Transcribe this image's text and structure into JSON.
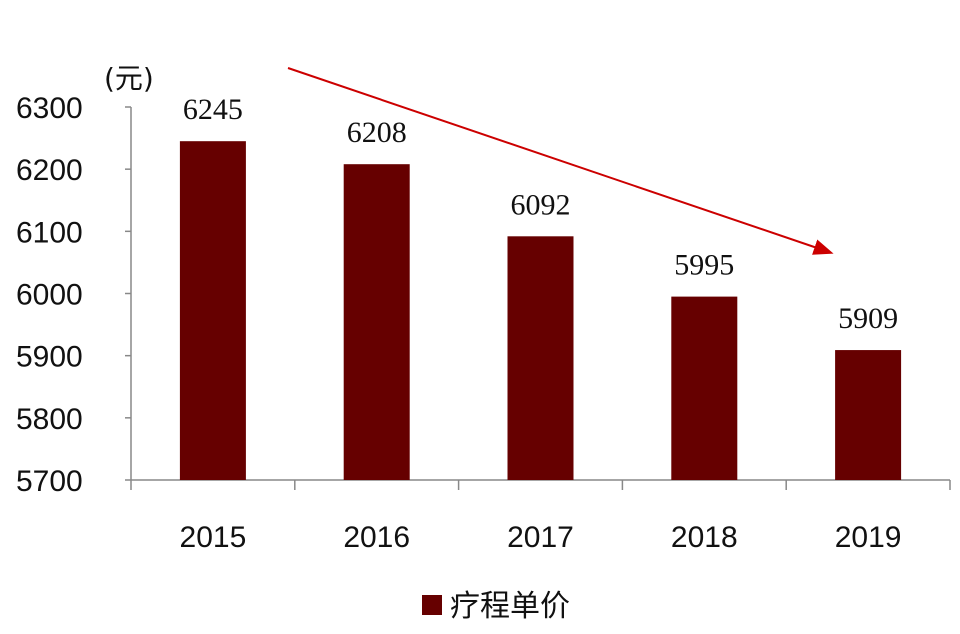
{
  "chart_data": {
    "type": "bar",
    "categories": [
      "2015",
      "2016",
      "2017",
      "2018",
      "2019"
    ],
    "series": [
      {
        "name": "疗程单价",
        "values": [
          6245,
          6208,
          6092,
          5995,
          5909
        ],
        "color": "#660000"
      }
    ],
    "data_labels": [
      "6245",
      "6208",
      "6092",
      "5995",
      "5909"
    ],
    "yticks": [
      "5700",
      "5800",
      "5900",
      "6000",
      "6100",
      "6200",
      "6300"
    ],
    "ylim": [
      5700,
      6300
    ],
    "y_unit": "(元)",
    "grid": false,
    "legend_position": "bottom-center",
    "trend_arrow": {
      "direction": "down",
      "color": "#cc0000"
    }
  }
}
